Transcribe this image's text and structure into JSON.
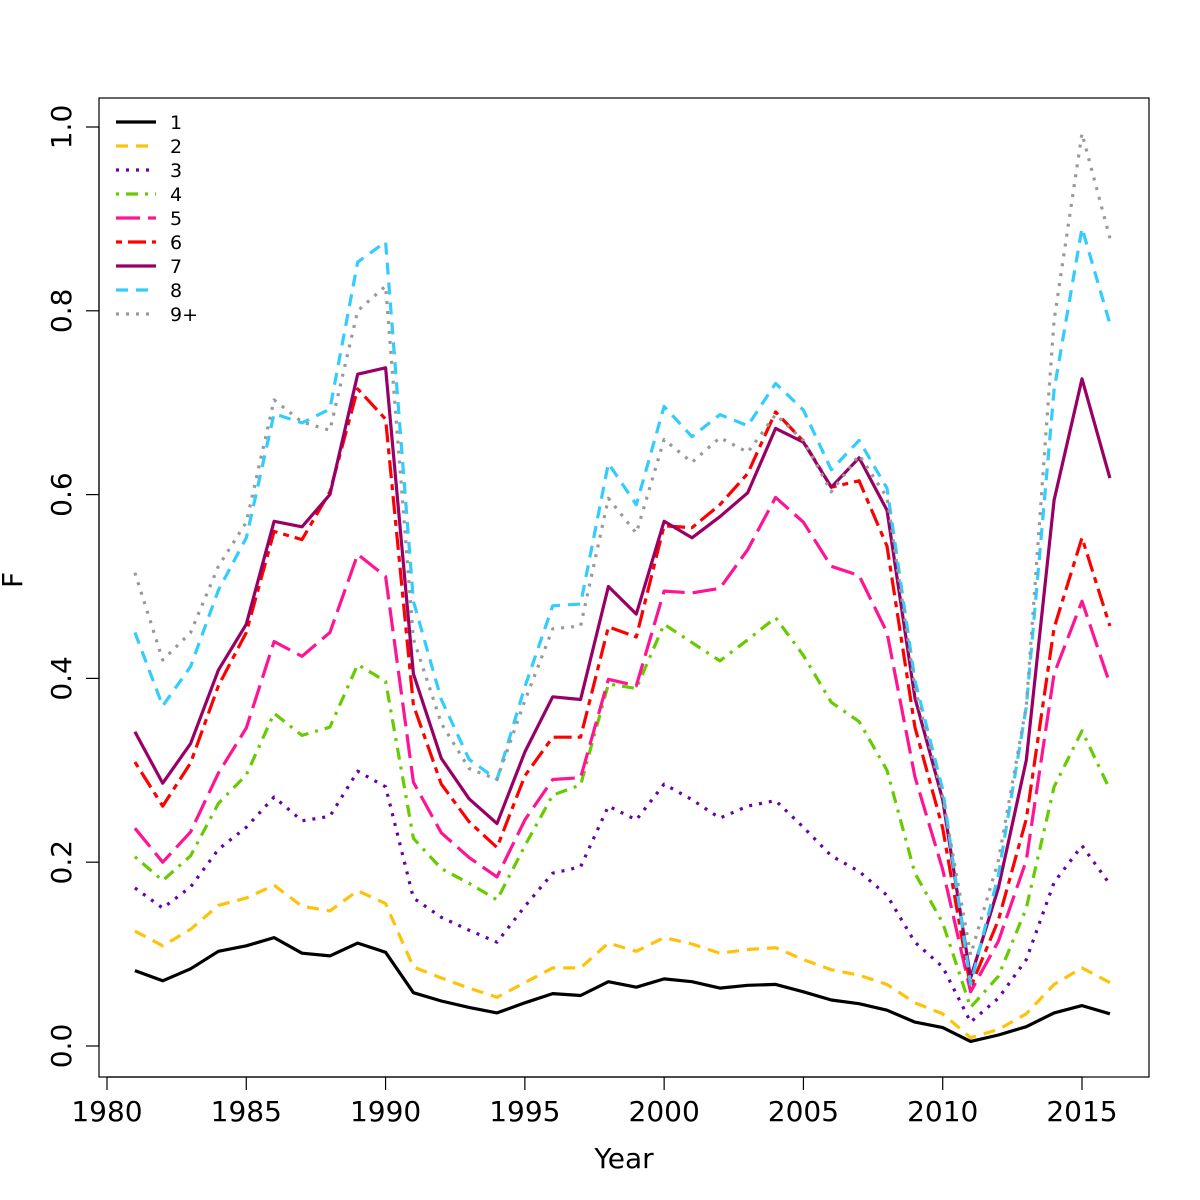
{
  "chart_data": {
    "type": "line",
    "title": "",
    "xlabel": "Year",
    "ylabel": "F",
    "xlim": [
      1980,
      2016
    ],
    "ylim": [
      0,
      1.0
    ],
    "x_ticks": [
      "1980",
      "1985",
      "1990",
      "1995",
      "2000",
      "2005",
      "2010",
      "2015"
    ],
    "y_ticks": [
      "0.0",
      "0.2",
      "0.4",
      "0.6",
      "0.8",
      "1.0"
    ],
    "grid": false,
    "legend_position": "top-left",
    "x": [
      1981,
      1982,
      1983,
      1984,
      1985,
      1986,
      1987,
      1988,
      1989,
      1990,
      1991,
      1992,
      1993,
      1994,
      1995,
      1996,
      1997,
      1998,
      1999,
      2000,
      2001,
      2002,
      2003,
      2004,
      2005,
      2006,
      2007,
      2008,
      2009,
      2010,
      2011,
      2012,
      2013,
      2014,
      2015,
      2016
    ],
    "series": [
      {
        "name": "1",
        "color": "#000000",
        "dash": "solid",
        "values": [
          0.082,
          0.071,
          0.084,
          0.103,
          0.109,
          0.118,
          0.101,
          0.098,
          0.112,
          0.102,
          0.058,
          0.049,
          0.042,
          0.036,
          0.047,
          0.057,
          0.055,
          0.07,
          0.064,
          0.073,
          0.07,
          0.063,
          0.066,
          0.067,
          0.059,
          0.05,
          0.046,
          0.039,
          0.026,
          0.02,
          0.005,
          0.012,
          0.021,
          0.036,
          0.044,
          0.035
        ]
      },
      {
        "name": "2",
        "color": "#FFC20A",
        "dash": "dashed",
        "values": [
          0.125,
          0.109,
          0.127,
          0.153,
          0.161,
          0.175,
          0.152,
          0.147,
          0.169,
          0.155,
          0.086,
          0.074,
          0.063,
          0.053,
          0.069,
          0.085,
          0.085,
          0.112,
          0.103,
          0.118,
          0.111,
          0.101,
          0.105,
          0.107,
          0.094,
          0.083,
          0.077,
          0.067,
          0.047,
          0.035,
          0.009,
          0.018,
          0.035,
          0.067,
          0.085,
          0.069
        ]
      },
      {
        "name": "3",
        "color": "#6A00A8",
        "dash": "dotted",
        "values": [
          0.172,
          0.15,
          0.173,
          0.214,
          0.238,
          0.271,
          0.245,
          0.25,
          0.299,
          0.282,
          0.161,
          0.14,
          0.126,
          0.113,
          0.152,
          0.188,
          0.195,
          0.261,
          0.246,
          0.285,
          0.268,
          0.248,
          0.261,
          0.267,
          0.238,
          0.207,
          0.19,
          0.164,
          0.113,
          0.086,
          0.026,
          0.052,
          0.094,
          0.178,
          0.218,
          0.176
        ]
      },
      {
        "name": "4",
        "color": "#66CC00",
        "dash": "dotdash",
        "values": [
          0.206,
          0.18,
          0.207,
          0.264,
          0.295,
          0.362,
          0.338,
          0.347,
          0.415,
          0.397,
          0.226,
          0.193,
          0.177,
          0.159,
          0.218,
          0.273,
          0.284,
          0.394,
          0.389,
          0.459,
          0.439,
          0.419,
          0.442,
          0.466,
          0.425,
          0.374,
          0.353,
          0.3,
          0.188,
          0.134,
          0.042,
          0.076,
          0.15,
          0.282,
          0.343,
          0.279
        ]
      },
      {
        "name": "5",
        "color": "#FF1493",
        "dash": "longdash",
        "values": [
          0.237,
          0.2,
          0.233,
          0.297,
          0.346,
          0.44,
          0.424,
          0.45,
          0.535,
          0.511,
          0.287,
          0.232,
          0.205,
          0.184,
          0.246,
          0.29,
          0.292,
          0.399,
          0.392,
          0.495,
          0.493,
          0.498,
          0.54,
          0.597,
          0.57,
          0.522,
          0.512,
          0.45,
          0.293,
          0.192,
          0.059,
          0.114,
          0.202,
          0.405,
          0.484,
          0.394
        ]
      },
      {
        "name": "6",
        "color": "#FF0000",
        "dash": "twodash",
        "values": [
          0.309,
          0.261,
          0.308,
          0.392,
          0.45,
          0.56,
          0.551,
          0.603,
          0.715,
          0.682,
          0.371,
          0.285,
          0.244,
          0.216,
          0.294,
          0.336,
          0.336,
          0.456,
          0.445,
          0.566,
          0.564,
          0.589,
          0.623,
          0.69,
          0.658,
          0.608,
          0.615,
          0.544,
          0.347,
          0.237,
          0.064,
          0.137,
          0.247,
          0.455,
          0.553,
          0.457
        ]
      },
      {
        "name": "7",
        "color": "#990066",
        "dash": "solid",
        "values": [
          0.342,
          0.286,
          0.329,
          0.409,
          0.459,
          0.571,
          0.565,
          0.6,
          0.731,
          0.738,
          0.405,
          0.313,
          0.269,
          0.242,
          0.32,
          0.38,
          0.377,
          0.5,
          0.47,
          0.571,
          0.553,
          0.576,
          0.602,
          0.672,
          0.657,
          0.608,
          0.64,
          0.583,
          0.379,
          0.268,
          0.074,
          0.172,
          0.311,
          0.594,
          0.726,
          0.618
        ]
      },
      {
        "name": "8",
        "color": "#33CCFF",
        "dash": "dashed",
        "values": [
          0.45,
          0.37,
          0.413,
          0.496,
          0.553,
          0.688,
          0.678,
          0.693,
          0.853,
          0.875,
          0.484,
          0.377,
          0.312,
          0.29,
          0.391,
          0.479,
          0.481,
          0.634,
          0.589,
          0.696,
          0.663,
          0.687,
          0.675,
          0.721,
          0.692,
          0.627,
          0.659,
          0.607,
          0.398,
          0.279,
          0.067,
          0.186,
          0.369,
          0.714,
          0.89,
          0.786
        ]
      },
      {
        "name": "9+",
        "color": "#999999",
        "dash": "dotted",
        "values": [
          0.515,
          0.42,
          0.45,
          0.522,
          0.57,
          0.703,
          0.679,
          0.67,
          0.8,
          0.827,
          0.443,
          0.351,
          0.302,
          0.29,
          0.376,
          0.454,
          0.457,
          0.596,
          0.558,
          0.66,
          0.635,
          0.662,
          0.646,
          0.687,
          0.659,
          0.603,
          0.643,
          0.597,
          0.39,
          0.271,
          0.099,
          0.202,
          0.37,
          0.79,
          0.993,
          0.879
        ]
      }
    ]
  }
}
